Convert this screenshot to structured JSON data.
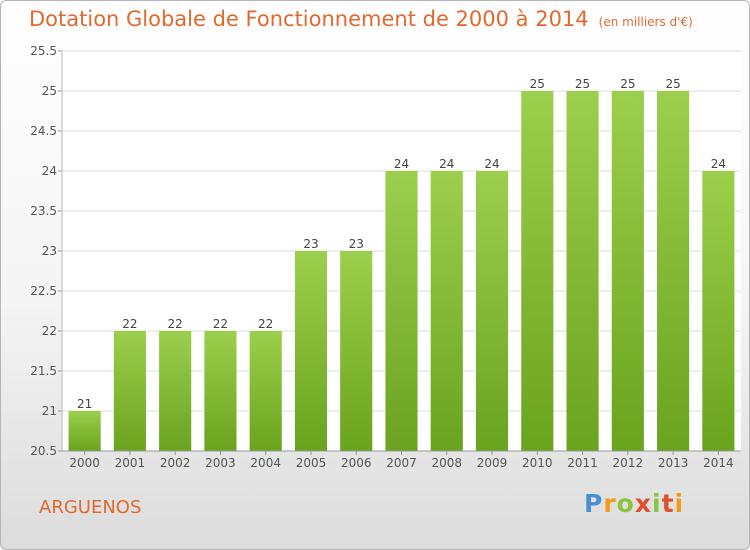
{
  "header": {
    "title": "Dotation Globale de Fonctionnement de 2000 à 2014",
    "unit": "(en milliers d'€)"
  },
  "footer": {
    "commune": "ARGUENOS",
    "logo_text": "Proxiti",
    "logo_colors": [
      "#4a8fd6",
      "#f29b1d",
      "#8cc43f",
      "#e0502b"
    ]
  },
  "colors": {
    "bar_light": "#9ccf4c",
    "bar_dark": "#6aa31e",
    "accent": "#e06a2e"
  },
  "chart_data": {
    "type": "bar",
    "title": "Dotation Globale de Fonctionnement de 2000 à 2014",
    "subtitle": "(en milliers d'€)",
    "categories": [
      "2000",
      "2001",
      "2002",
      "2003",
      "2004",
      "2005",
      "2006",
      "2007",
      "2008",
      "2009",
      "2010",
      "2011",
      "2012",
      "2013",
      "2014"
    ],
    "values": [
      21,
      22,
      22,
      22,
      22,
      23,
      23,
      24,
      24,
      24,
      25,
      25,
      25,
      25,
      24
    ],
    "data_labels": [
      "21",
      "22",
      "22",
      "22",
      "22",
      "23",
      "23",
      "24",
      "24",
      "24",
      "25",
      "25",
      "25",
      "25",
      "24"
    ],
    "ylim": [
      20.5,
      25.5
    ],
    "yticks": [
      20.5,
      21,
      21.5,
      22,
      22.5,
      23,
      23.5,
      24,
      24.5,
      25,
      25.5
    ],
    "ytick_labels": [
      "20.5",
      "21",
      "21.5",
      "22",
      "22.5",
      "23",
      "23.5",
      "24",
      "24.5",
      "25",
      "25.5"
    ],
    "grid": true,
    "legend": "none"
  }
}
